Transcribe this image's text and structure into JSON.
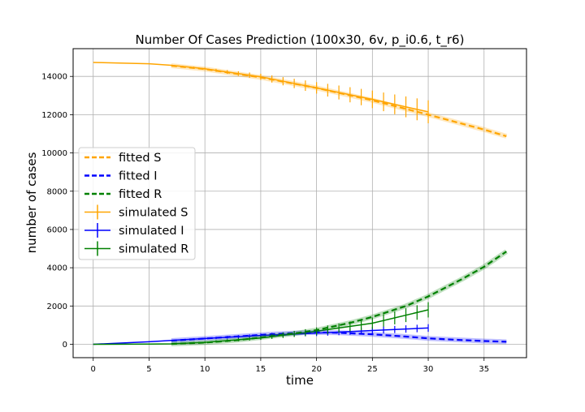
{
  "chart_data": {
    "type": "line",
    "title": "Number Of Cases Prediction (100x30, 6v, p_i0.6, t_r6)",
    "xlabel": "time",
    "ylabel": "number of cases",
    "xlim": [
      -1.8,
      38.8
    ],
    "ylim": [
      -700,
      15450
    ],
    "xticks": [
      0,
      5,
      10,
      15,
      20,
      25,
      30,
      35
    ],
    "yticks": [
      0,
      2000,
      4000,
      6000,
      8000,
      10000,
      12000,
      14000
    ],
    "grid": true,
    "legend_position": "center-left",
    "legend": [
      "fitted S",
      "fitted I",
      "fitted R",
      "simulated S",
      "simulated I",
      "simulated R"
    ],
    "fitted": [
      {
        "name": "fitted S",
        "color": "#ffa500",
        "style": "dashed",
        "x": [
          7,
          10,
          15,
          20,
          25,
          30,
          35,
          37
        ],
        "y": [
          14560,
          14380,
          13950,
          13400,
          12750,
          12000,
          11220,
          10870
        ]
      },
      {
        "name": "fitted I",
        "color": "#0000ff",
        "style": "dashed",
        "x": [
          7,
          10,
          13,
          16,
          19,
          20,
          22,
          25,
          28,
          30,
          33,
          35,
          37
        ],
        "y": [
          190,
          300,
          410,
          530,
          610,
          620,
          600,
          520,
          400,
          310,
          220,
          170,
          130
        ]
      },
      {
        "name": "fitted R",
        "color": "#008000",
        "style": "dashed",
        "x": [
          7,
          10,
          13,
          15,
          18,
          20,
          23,
          25,
          28,
          30,
          33,
          35,
          37
        ],
        "y": [
          20,
          90,
          220,
          350,
          560,
          740,
          1120,
          1430,
          2000,
          2500,
          3400,
          4050,
          4850
        ]
      }
    ],
    "simulated": [
      {
        "name": "simulated S",
        "color": "#ffa500",
        "x": [
          0,
          5,
          7,
          10,
          15,
          20,
          25,
          30
        ],
        "y": [
          14730,
          14660,
          14580,
          14400,
          13980,
          13400,
          12800,
          12150
        ],
        "err": [
          0,
          0,
          30,
          60,
          160,
          300,
          460,
          600
        ]
      },
      {
        "name": "simulated I",
        "color": "#0000ff",
        "x": [
          0,
          5,
          7,
          10,
          15,
          20,
          25,
          30
        ],
        "y": [
          0,
          130,
          200,
          300,
          460,
          580,
          720,
          850
        ],
        "err": [
          0,
          0,
          30,
          50,
          100,
          150,
          180,
          200
        ]
      },
      {
        "name": "simulated R",
        "color": "#008000",
        "x": [
          0,
          5,
          7,
          10,
          15,
          20,
          25,
          30
        ],
        "y": [
          0,
          10,
          20,
          100,
          330,
          680,
          1100,
          1800
        ],
        "err": [
          0,
          0,
          20,
          50,
          100,
          200,
          300,
          400
        ]
      }
    ]
  }
}
